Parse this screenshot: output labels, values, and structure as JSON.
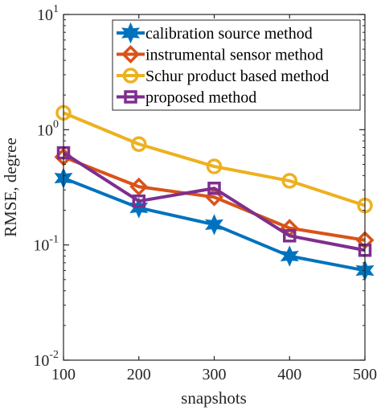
{
  "chart_data": {
    "type": "line",
    "x": [
      100,
      200,
      300,
      400,
      500
    ],
    "xlabel": "snapshots",
    "ylabel": "RMSE, degree",
    "xlim": [
      100,
      500
    ],
    "ylim": [
      0.01,
      10
    ],
    "yscale": "log",
    "xticks": [
      100,
      200,
      300,
      400,
      500
    ],
    "xtick_labels": [
      "100",
      "200",
      "300",
      "400",
      "500"
    ],
    "yticks": [
      0.01,
      0.1,
      1,
      10
    ],
    "ytick_labels": [
      {
        "base": "10",
        "exp": "-2"
      },
      {
        "base": "10",
        "exp": "-1"
      },
      {
        "base": "10",
        "exp": "0"
      },
      {
        "base": "10",
        "exp": "1"
      }
    ],
    "grid": false,
    "legend_position": "top-right",
    "series": [
      {
        "name": "calibration source method",
        "color": "#0072BD",
        "marker": "hexagram",
        "values": [
          0.38,
          0.21,
          0.15,
          0.08,
          0.06
        ]
      },
      {
        "name": "instrumental sensor method",
        "color": "#D95319",
        "marker": "diamond",
        "values": [
          0.58,
          0.32,
          0.26,
          0.14,
          0.11
        ]
      },
      {
        "name": "Schur product based method",
        "color": "#EDB120",
        "marker": "circle",
        "values": [
          1.4,
          0.75,
          0.48,
          0.36,
          0.22
        ]
      },
      {
        "name": "proposed method",
        "color": "#7E2F8E",
        "marker": "square",
        "values": [
          0.63,
          0.24,
          0.31,
          0.12,
          0.09
        ]
      }
    ]
  }
}
